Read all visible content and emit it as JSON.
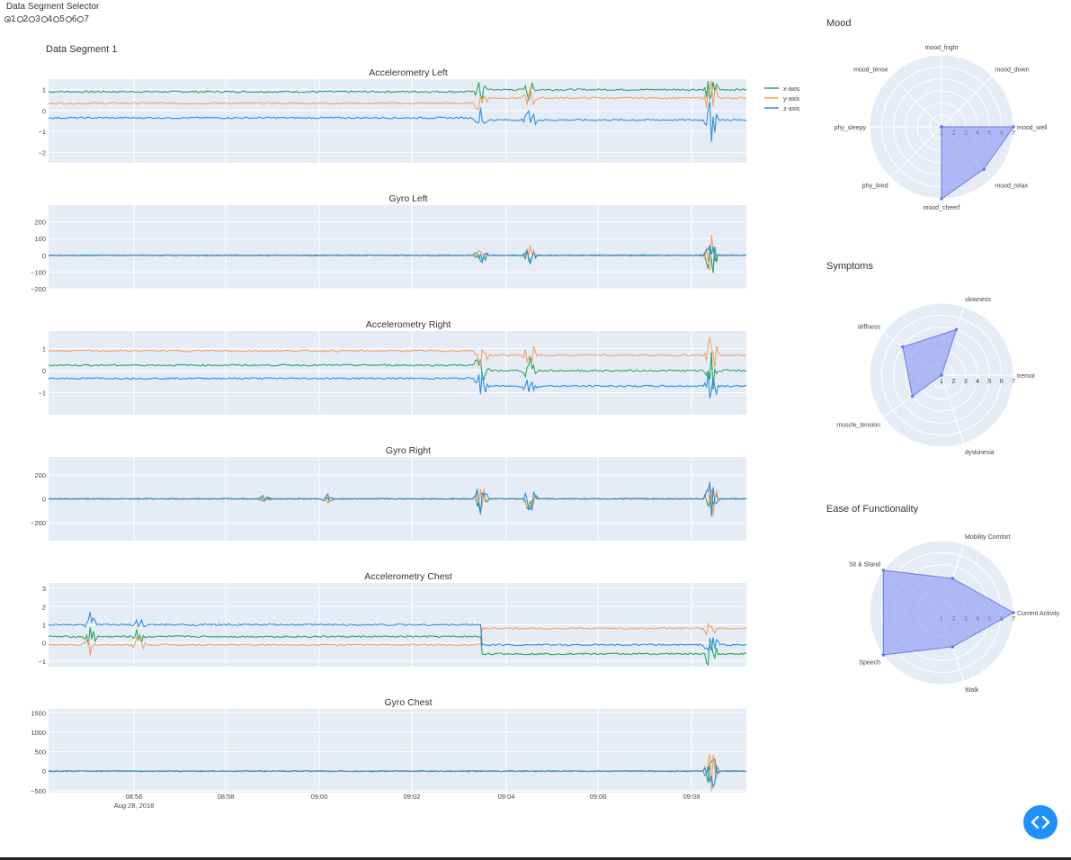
{
  "selector": {
    "title": "Data Segment Selector",
    "options": [
      "1",
      "2",
      "3",
      "4",
      "5",
      "6",
      "7"
    ],
    "selected": "1"
  },
  "segment_label": "Data Segment 1",
  "colors": {
    "x": "#2ca25f",
    "y": "#f4a261",
    "z": "#2b8fe0",
    "plot_bg": "#e5ecf6",
    "radar_fill": "#8e9cf2"
  },
  "legend": [
    "x-axis",
    "y-axis",
    "z-axis"
  ],
  "x_axis": {
    "ticks": [
      "08:56",
      "08:58",
      "09:00",
      "09:02",
      "09:04",
      "09:06",
      "09:08"
    ],
    "date_label": "Aug 28, 2018"
  },
  "chart_data": [
    {
      "type": "line",
      "title": "Accelerometry Left",
      "ylim": [
        -2.5,
        1.5
      ],
      "yticks": [
        "1",
        "0",
        "−1",
        "−2"
      ],
      "series": [
        {
          "name": "x-axis",
          "level": 0.9,
          "late": 1.0
        },
        {
          "name": "y-axis",
          "level": 0.35,
          "late": 0.6
        },
        {
          "name": "z-axis",
          "level": -0.35,
          "late": -0.45
        }
      ]
    },
    {
      "type": "line",
      "title": "Gyro Left",
      "ylim": [
        -200,
        300
      ],
      "yticks": [
        "200",
        "100",
        "0",
        "−100",
        "−200"
      ],
      "series": [
        {
          "name": "x-axis",
          "level": 0
        },
        {
          "name": "y-axis",
          "level": 0
        },
        {
          "name": "z-axis",
          "level": 0
        }
      ]
    },
    {
      "type": "line",
      "title": "Accelerometry Right",
      "ylim": [
        -2,
        1.8
      ],
      "yticks": [
        "1",
        "0",
        "−1"
      ],
      "series": [
        {
          "name": "x-axis",
          "level": 0.25,
          "late": 0.0
        },
        {
          "name": "y-axis",
          "level": 0.9,
          "late": 0.7
        },
        {
          "name": "z-axis",
          "level": -0.35,
          "late": -0.7
        }
      ]
    },
    {
      "type": "line",
      "title": "Gyro Right",
      "ylim": [
        -350,
        350
      ],
      "yticks": [
        "200",
        "0",
        "−200"
      ],
      "series": [
        {
          "name": "x-axis",
          "level": 0
        },
        {
          "name": "y-axis",
          "level": 0
        },
        {
          "name": "z-axis",
          "level": 0
        }
      ]
    },
    {
      "type": "line",
      "title": "Accelerometry Chest",
      "ylim": [
        -1.3,
        3.3
      ],
      "yticks": [
        "3",
        "2",
        "1",
        "0",
        "−1"
      ],
      "series": [
        {
          "name": "x-axis",
          "level": 0.35,
          "late": -0.6
        },
        {
          "name": "y-axis",
          "level": -0.1,
          "late": 0.8
        },
        {
          "name": "z-axis",
          "level": 1.0,
          "late": -0.1
        }
      ]
    },
    {
      "type": "line",
      "title": "Gyro Chest",
      "ylim": [
        -550,
        1600
      ],
      "yticks": [
        "1500",
        "1000",
        "500",
        "0",
        "−500"
      ],
      "series": [
        {
          "name": "x-axis",
          "level": 0
        },
        {
          "name": "y-axis",
          "level": 0
        },
        {
          "name": "z-axis",
          "level": 0
        }
      ]
    },
    {
      "type": "radar",
      "title": "Mood",
      "range": [
        1,
        7
      ],
      "rticks": [
        "1",
        "2",
        "3",
        "4",
        "5",
        "6",
        "7"
      ],
      "axes": [
        "mood_well",
        "mood_down",
        "mood_fright",
        "mood_tense",
        "phy_sleepy",
        "phy_tired",
        "mood_cheerf",
        "mood_relax"
      ],
      "values": [
        7,
        1,
        1,
        1,
        1,
        1,
        7,
        6
      ]
    },
    {
      "type": "radar",
      "title": "Symptoms",
      "range": [
        1,
        7
      ],
      "rticks": [
        "1",
        "2",
        "3",
        "4",
        "5",
        "6",
        "7"
      ],
      "axes": [
        "tremor",
        "slowness",
        "stiffness",
        "muscle_tension",
        "dyskinesia"
      ],
      "values": [
        1,
        5,
        5,
        4,
        1
      ]
    },
    {
      "type": "radar",
      "title": "Ease of Functionality",
      "range": [
        1,
        7
      ],
      "rticks": [
        "1",
        "2",
        "3",
        "4",
        "5",
        "6",
        "7"
      ],
      "axes": [
        "Current Activity",
        "Mobility Comfort",
        "Sit & Stand",
        "Speech",
        "Walk"
      ],
      "values": [
        7,
        4,
        7,
        7,
        4
      ]
    }
  ],
  "code_toggle_icon": "code-brackets-icon"
}
